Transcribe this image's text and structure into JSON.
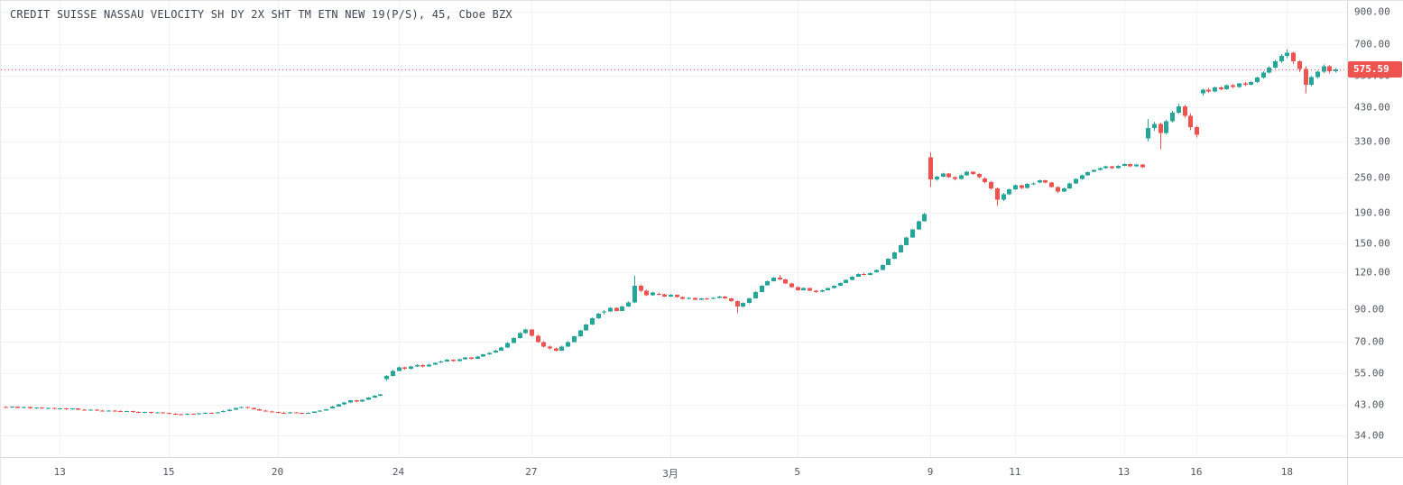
{
  "header": {
    "title": "CREDIT SUISSE NASSAU VELOCITY SH DY 2X SHT TM ETN NEW 19(P/S), 45, Cboe BZX"
  },
  "colors": {
    "up": "#26a69a",
    "down": "#ef5350",
    "price_line": "#ef5350",
    "tag_bg": "#ef5350",
    "tag_text": "#ffffff",
    "grid": "#f0f3fa",
    "axis_text": "#51565e",
    "title_text": "#434651"
  },
  "chart_data": {
    "type": "candlestick",
    "title": "CREDIT SUISSE NASSAU VELOCITY SH DY 2X SHT TM ETN NEW 19(P/S)",
    "interval": "45",
    "exchange": "Cboe BZX",
    "price_scale": "logarithmic",
    "last_price": 575.59,
    "last_price_label": "575.59",
    "y_ticks": [
      {
        "value": 900,
        "label": "900.00"
      },
      {
        "value": 700,
        "label": "700.00"
      },
      {
        "value": 550,
        "label": "550.00"
      },
      {
        "value": 430,
        "label": "430.00"
      },
      {
        "value": 330,
        "label": "330.00"
      },
      {
        "value": 250,
        "label": "250.00"
      },
      {
        "value": 190,
        "label": "190.00"
      },
      {
        "value": 150,
        "label": "150.00"
      },
      {
        "value": 120,
        "label": "120.00"
      },
      {
        "value": 90,
        "label": "90.00"
      },
      {
        "value": 70,
        "label": "70.00"
      },
      {
        "value": 55,
        "label": "55.00"
      },
      {
        "value": 43,
        "label": "43.00"
      },
      {
        "value": 34,
        "label": "34.00"
      }
    ],
    "x_ticks": [
      {
        "index": 9,
        "label": "13"
      },
      {
        "index": 27,
        "label": "15"
      },
      {
        "index": 45,
        "label": "20"
      },
      {
        "index": 65,
        "label": "24"
      },
      {
        "index": 87,
        "label": "27"
      },
      {
        "index": 110,
        "label": "3月"
      },
      {
        "index": 131,
        "label": "5"
      },
      {
        "index": 153,
        "label": "9"
      },
      {
        "index": 167,
        "label": "11"
      },
      {
        "index": 185,
        "label": "13"
      },
      {
        "index": 197,
        "label": "16"
      },
      {
        "index": 212,
        "label": "18"
      }
    ],
    "candles": [
      [
        42.3,
        42.6,
        42.0,
        42.1
      ],
      [
        42.1,
        42.5,
        42.0,
        42.4
      ],
      [
        42.4,
        42.5,
        41.9,
        42.0
      ],
      [
        42.0,
        42.4,
        41.9,
        42.3
      ],
      [
        42.3,
        42.4,
        41.7,
        41.9
      ],
      [
        41.9,
        42.2,
        41.7,
        42.1
      ],
      [
        42.1,
        42.2,
        41.6,
        41.8
      ],
      [
        41.8,
        42.1,
        41.6,
        42.0
      ],
      [
        42.0,
        42.1,
        41.5,
        41.7
      ],
      [
        41.7,
        42.0,
        41.5,
        41.9
      ],
      [
        41.9,
        42.0,
        41.4,
        41.6
      ],
      [
        41.6,
        41.9,
        41.4,
        41.8
      ],
      [
        41.8,
        41.9,
        41.3,
        41.5
      ],
      [
        41.5,
        41.7,
        41.1,
        41.3
      ],
      [
        41.3,
        41.6,
        41.2,
        41.5
      ],
      [
        41.5,
        41.6,
        41.0,
        41.2
      ],
      [
        41.2,
        41.4,
        40.9,
        41.0
      ],
      [
        41.0,
        41.3,
        40.9,
        41.2
      ],
      [
        41.2,
        41.3,
        40.8,
        41.0
      ],
      [
        41.0,
        41.2,
        40.7,
        40.8
      ],
      [
        40.8,
        41.1,
        40.7,
        41.0
      ],
      [
        41.0,
        41.1,
        40.5,
        40.7
      ],
      [
        40.7,
        40.9,
        40.4,
        40.5
      ],
      [
        40.5,
        40.8,
        40.4,
        40.7
      ],
      [
        40.7,
        40.8,
        40.2,
        40.4
      ],
      [
        40.4,
        40.7,
        40.3,
        40.6
      ],
      [
        40.6,
        40.7,
        40.3,
        40.5
      ],
      [
        40.4,
        40.5,
        40.0,
        40.2
      ],
      [
        40.2,
        40.4,
        39.9,
        40.0
      ],
      [
        40.0,
        40.2,
        39.8,
        39.9
      ],
      [
        39.9,
        40.3,
        39.8,
        40.2
      ],
      [
        40.2,
        40.3,
        39.9,
        40.0
      ],
      [
        40.0,
        40.4,
        39.9,
        40.3
      ],
      [
        40.3,
        40.6,
        40.2,
        40.5
      ],
      [
        40.5,
        40.6,
        40.2,
        40.4
      ],
      [
        40.4,
        40.7,
        40.3,
        40.6
      ],
      [
        40.7,
        41.2,
        40.6,
        41.0
      ],
      [
        41.0,
        41.7,
        40.9,
        41.5
      ],
      [
        41.5,
        42.1,
        41.4,
        42.0
      ],
      [
        42.0,
        42.5,
        41.9,
        42.3
      ],
      [
        42.3,
        42.4,
        41.8,
        42.0
      ],
      [
        42.0,
        42.1,
        41.5,
        41.6
      ],
      [
        41.6,
        41.8,
        41.1,
        41.2
      ],
      [
        41.2,
        41.4,
        40.8,
        40.9
      ],
      [
        40.9,
        41.1,
        40.6,
        40.7
      ],
      [
        40.7,
        40.8,
        40.3,
        40.5
      ],
      [
        40.5,
        40.7,
        40.2,
        40.3
      ],
      [
        40.3,
        40.7,
        40.2,
        40.6
      ],
      [
        40.6,
        40.7,
        40.3,
        40.4
      ],
      [
        40.4,
        40.5,
        40.0,
        40.2
      ],
      [
        40.2,
        40.6,
        40.1,
        40.5
      ],
      [
        40.5,
        40.9,
        40.4,
        40.8
      ],
      [
        40.8,
        41.3,
        40.7,
        41.2
      ],
      [
        41.2,
        41.7,
        41.1,
        41.6
      ],
      [
        41.9,
        42.7,
        41.8,
        42.5
      ],
      [
        42.5,
        43.4,
        42.4,
        43.2
      ],
      [
        43.2,
        44.0,
        43.0,
        43.8
      ],
      [
        43.8,
        44.7,
        43.7,
        44.5
      ],
      [
        44.5,
        44.7,
        43.9,
        44.1
      ],
      [
        44.1,
        45.0,
        44.0,
        44.8
      ],
      [
        44.8,
        45.7,
        44.7,
        45.5
      ],
      [
        45.5,
        46.4,
        45.4,
        46.2
      ],
      [
        46.2,
        46.8,
        46.0,
        46.6
      ],
      [
        52.5,
        54.2,
        51.8,
        53.8
      ],
      [
        53.8,
        56.4,
        53.6,
        56.0
      ],
      [
        56.0,
        57.9,
        55.8,
        57.5
      ],
      [
        57.5,
        57.8,
        56.4,
        56.8
      ],
      [
        56.8,
        58.2,
        56.6,
        57.8
      ],
      [
        57.8,
        58.9,
        57.6,
        58.5
      ],
      [
        58.5,
        58.8,
        57.5,
        57.9
      ],
      [
        57.9,
        59.1,
        57.7,
        58.8
      ],
      [
        58.8,
        59.8,
        58.6,
        59.5
      ],
      [
        59.8,
        60.6,
        59.5,
        60.2
      ],
      [
        60.2,
        61.3,
        60.0,
        61.0
      ],
      [
        61.0,
        61.2,
        60.1,
        60.4
      ],
      [
        60.4,
        61.5,
        60.2,
        61.2
      ],
      [
        61.2,
        62.3,
        61.0,
        62.0
      ],
      [
        62.0,
        62.2,
        61.1,
        61.4
      ],
      [
        61.4,
        62.8,
        61.3,
        62.5
      ],
      [
        62.5,
        63.8,
        62.4,
        63.5
      ],
      [
        63.5,
        64.6,
        63.3,
        64.2
      ],
      [
        64.5,
        65.9,
        64.3,
        65.5
      ],
      [
        65.5,
        67.4,
        65.3,
        67.0
      ],
      [
        67.0,
        69.9,
        66.8,
        69.5
      ],
      [
        69.5,
        72.5,
        69.3,
        72.0
      ],
      [
        72.0,
        75.5,
        71.8,
        75.0
      ],
      [
        75.0,
        77.6,
        74.6,
        77.0
      ],
      [
        77.0,
        77.3,
        73.0,
        73.5
      ],
      [
        73.5,
        74.0,
        69.6,
        70.0
      ],
      [
        70.0,
        70.5,
        67.0,
        67.5
      ],
      [
        67.5,
        68.0,
        66.0,
        66.5
      ],
      [
        66.5,
        67.0,
        65.0,
        65.5
      ],
      [
        65.5,
        68.0,
        65.3,
        67.5
      ],
      [
        67.5,
        70.4,
        67.3,
        70.0
      ],
      [
        70.0,
        73.4,
        69.8,
        73.0
      ],
      [
        73.0,
        76.9,
        72.8,
        76.5
      ],
      [
        76.5,
        80.5,
        76.3,
        80.0
      ],
      [
        80.0,
        84.5,
        79.8,
        84.0
      ],
      [
        84.0,
        87.6,
        83.7,
        87.0
      ],
      [
        88.0,
        89.4,
        86.5,
        88.5
      ],
      [
        88.5,
        91.6,
        88.2,
        91.0
      ],
      [
        91.0,
        91.5,
        88.6,
        89.0
      ],
      [
        89.0,
        92.6,
        88.8,
        92.0
      ],
      [
        92.0,
        95.7,
        91.8,
        95.0
      ],
      [
        95.0,
        117.0,
        94.5,
        108.0
      ],
      [
        108.0,
        109.0,
        102.8,
        104.0
      ],
      [
        104.0,
        105.0,
        99.8,
        100.5
      ],
      [
        100.5,
        103.2,
        100.0,
        102.5
      ],
      [
        101.5,
        102.5,
        100.4,
        101.0
      ],
      [
        101.0,
        101.5,
        99.0,
        99.5
      ],
      [
        99.5,
        101.3,
        99.2,
        100.8
      ],
      [
        100.8,
        101.0,
        98.6,
        99.0
      ],
      [
        99.0,
        99.5,
        97.0,
        97.5
      ],
      [
        97.5,
        99.0,
        97.2,
        98.5
      ],
      [
        98.5,
        98.8,
        96.6,
        97.0
      ],
      [
        97.0,
        98.4,
        96.8,
        98.0
      ],
      [
        98.0,
        98.3,
        96.9,
        97.5
      ],
      [
        97.8,
        99.0,
        97.3,
        98.5
      ],
      [
        98.5,
        100.0,
        98.2,
        99.5
      ],
      [
        99.5,
        99.8,
        97.6,
        98.0
      ],
      [
        98.0,
        98.3,
        95.5,
        96.0
      ],
      [
        96.0,
        96.5,
        87.5,
        92.0
      ],
      [
        92.0,
        95.0,
        91.5,
        94.5
      ],
      [
        94.5,
        98.5,
        94.2,
        98.0
      ],
      [
        98.0,
        103.6,
        97.8,
        103.0
      ],
      [
        103.0,
        108.6,
        102.7,
        108.0
      ],
      [
        108.5,
        112.6,
        108.2,
        112.0
      ],
      [
        112.0,
        115.6,
        111.7,
        115.0
      ],
      [
        115.0,
        117.5,
        112.9,
        113.5
      ],
      [
        113.5,
        114.0,
        109.5,
        110.0
      ],
      [
        110.0,
        110.5,
        106.5,
        107.0
      ],
      [
        107.0,
        107.5,
        104.0,
        104.5
      ],
      [
        104.5,
        106.6,
        104.2,
        106.0
      ],
      [
        106.0,
        106.4,
        103.6,
        104.0
      ],
      [
        104.0,
        104.5,
        102.4,
        103.0
      ],
      [
        103.2,
        104.9,
        102.8,
        104.5
      ],
      [
        104.5,
        106.4,
        104.3,
        106.0
      ],
      [
        106.0,
        108.3,
        105.8,
        108.0
      ],
      [
        108.0,
        110.9,
        107.8,
        110.5
      ],
      [
        110.5,
        113.4,
        110.3,
        113.0
      ],
      [
        113.0,
        116.4,
        112.8,
        116.0
      ],
      [
        116.0,
        118.9,
        115.8,
        118.5
      ],
      [
        118.5,
        119.5,
        117.0,
        117.5
      ],
      [
        117.5,
        119.8,
        117.2,
        119.0
      ],
      [
        120.0,
        122.5,
        119.6,
        122.0
      ],
      [
        122.0,
        127.4,
        121.8,
        127.0
      ],
      [
        127.0,
        133.5,
        126.7,
        133.0
      ],
      [
        133.0,
        140.6,
        132.7,
        140.0
      ],
      [
        140.0,
        148.7,
        139.6,
        148.0
      ],
      [
        148.0,
        157.8,
        147.6,
        157.0
      ],
      [
        157.0,
        167.9,
        156.6,
        167.0
      ],
      [
        167.0,
        178.9,
        166.5,
        178.0
      ],
      [
        178.0,
        190.0,
        177.5,
        188.0
      ],
      [
        292.0,
        303.5,
        232.0,
        246.0
      ],
      [
        246.0,
        253.0,
        243.5,
        251.5
      ],
      [
        251.5,
        259.0,
        250.0,
        257.5
      ],
      [
        257.5,
        258.5,
        248.5,
        250.5
      ],
      [
        250.5,
        252.0,
        244.0,
        246.5
      ],
      [
        246.5,
        255.5,
        245.5,
        254.0
      ],
      [
        254.0,
        262.5,
        253.0,
        261.0
      ],
      [
        261.0,
        262.0,
        254.5,
        256.5
      ],
      [
        256.5,
        258.0,
        248.0,
        250.0
      ],
      [
        248.0,
        250.0,
        238.5,
        241.0
      ],
      [
        241.0,
        243.0,
        227.0,
        229.5
      ],
      [
        229.5,
        231.0,
        200.5,
        210.0
      ],
      [
        210.0,
        221.5,
        208.0,
        219.5
      ],
      [
        219.5,
        229.0,
        218.0,
        227.5
      ],
      [
        227.5,
        236.5,
        226.5,
        235.0
      ],
      [
        235.0,
        236.0,
        228.0,
        230.0
      ],
      [
        230.0,
        239.0,
        229.0,
        237.5
      ],
      [
        237.5,
        240.5,
        235.5,
        238.5
      ],
      [
        240.0,
        245.5,
        239.0,
        244.0
      ],
      [
        244.0,
        245.0,
        238.5,
        240.0
      ],
      [
        240.0,
        241.0,
        230.5,
        232.0
      ],
      [
        232.0,
        233.0,
        221.5,
        224.0
      ],
      [
        224.0,
        231.0,
        223.0,
        229.5
      ],
      [
        229.5,
        240.0,
        228.5,
        238.5
      ],
      [
        238.5,
        248.0,
        237.5,
        246.5
      ],
      [
        246.5,
        255.5,
        245.5,
        254.0
      ],
      [
        254.0,
        261.5,
        253.0,
        260.0
      ],
      [
        261.0,
        265.5,
        260.0,
        264.5
      ],
      [
        264.5,
        269.5,
        263.5,
        268.0
      ],
      [
        268.0,
        273.5,
        267.0,
        272.0
      ],
      [
        272.0,
        273.0,
        266.5,
        268.5
      ],
      [
        268.5,
        274.5,
        267.5,
        273.0
      ],
      [
        273.0,
        278.5,
        272.0,
        277.0
      ],
      [
        277.0,
        278.0,
        270.5,
        272.5
      ],
      [
        272.5,
        277.5,
        271.5,
        276.0
      ],
      [
        276.0,
        277.0,
        268.5,
        270.0
      ],
      [
        338.0,
        392.0,
        330.0,
        366.0
      ],
      [
        366.0,
        384.0,
        358.0,
        378.0
      ],
      [
        378.0,
        382.0,
        310.0,
        352.0
      ],
      [
        352.0,
        390.0,
        348.0,
        386.0
      ],
      [
        386.0,
        418.0,
        382.0,
        412.0
      ],
      [
        412.0,
        442.0,
        408.0,
        432.0
      ],
      [
        432.0,
        438.0,
        396.0,
        402.0
      ],
      [
        402.0,
        410.0,
        360.0,
        368.0
      ],
      [
        368.0,
        372.0,
        340.0,
        347.0
      ],
      [
        478.0,
        496.0,
        470.0,
        492.0
      ],
      [
        492.0,
        498.0,
        480.0,
        485.0
      ],
      [
        485.0,
        504.0,
        483.0,
        501.0
      ],
      [
        501.0,
        506.0,
        490.0,
        494.0
      ],
      [
        494.0,
        512.0,
        492.0,
        509.0
      ],
      [
        509.0,
        514.0,
        498.0,
        502.0
      ],
      [
        502.0,
        519.0,
        500.0,
        516.0
      ],
      [
        516.0,
        522.0,
        506.0,
        511.0
      ],
      [
        511.0,
        525.0,
        509.0,
        522.0
      ],
      [
        522.0,
        545.0,
        518.0,
        540.0
      ],
      [
        540.0,
        568.0,
        536.0,
        562.0
      ],
      [
        562.0,
        590.0,
        558.0,
        584.0
      ],
      [
        584.0,
        620.0,
        580.0,
        612.0
      ],
      [
        612.0,
        648.0,
        605.0,
        640.0
      ],
      [
        640.0,
        672.0,
        628.0,
        655.0
      ],
      [
        655.0,
        660.0,
        600.0,
        612.0
      ],
      [
        612.0,
        618.0,
        565.0,
        578.0
      ],
      [
        578.0,
        590.0,
        478.0,
        512.0
      ],
      [
        512.0,
        548.0,
        505.0,
        542.0
      ],
      [
        542.0,
        570.0,
        538.0,
        565.0
      ],
      [
        565.0,
        598.0,
        560.0,
        590.0
      ],
      [
        590.0,
        595.0,
        558.0,
        568.0
      ],
      [
        568.0,
        582.0,
        562.0,
        575.59
      ]
    ]
  }
}
